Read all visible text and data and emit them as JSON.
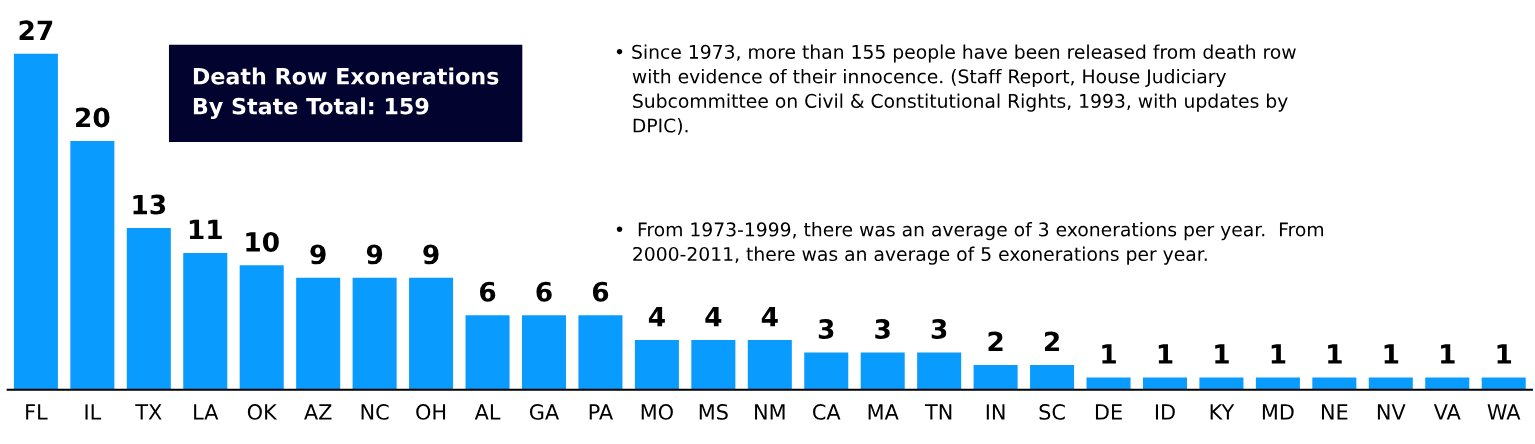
{
  "chart_data": {
    "type": "bar",
    "title": "Death Row Exonerations\nBy State Total: 159",
    "categories": [
      "FL",
      "IL",
      "TX",
      "LA",
      "OK",
      "AZ",
      "NC",
      "OH",
      "AL",
      "GA",
      "PA",
      "MO",
      "MS",
      "NM",
      "CA",
      "MA",
      "TN",
      "IN",
      "SC",
      "DE",
      "ID",
      "KY",
      "MD",
      "NE",
      "NV",
      "VA",
      "WA"
    ],
    "values": [
      27,
      20,
      13,
      11,
      10,
      9,
      9,
      9,
      6,
      6,
      6,
      4,
      4,
      4,
      3,
      3,
      3,
      2,
      2,
      1,
      1,
      1,
      1,
      1,
      1,
      1,
      1
    ],
    "color": "#0a9bff",
    "data_labels": true,
    "grid": false,
    "legend": false,
    "annotations": [
      "• Since 1973, more than 155 people have been released from death row\n   with evidence of their innocence. (Staff Report, House Judiciary\n   Subcommittee on Civil & Constitutional Rights, 1993, with updates by\n   DPIC).",
      "•  From 1973-1999, there was an average of 3 exonerations per year.  From\n   2000-2011, there was an average of 5 exonerations per year."
    ]
  }
}
